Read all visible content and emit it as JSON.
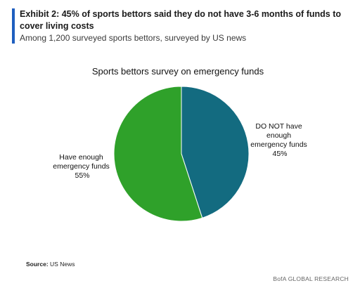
{
  "exhibit": {
    "title": "Exhibit 2: 45% of sports bettors said they do not have 3-6 months of funds to cover living costs",
    "subtitle": "Among 1,200 surveyed sports bettors, surveyed by US news"
  },
  "footer": {
    "source_label": "Source:",
    "source_value": "US News",
    "brand": "BofA GLOBAL RESEARCH"
  },
  "colors": {
    "accent_bar": "#1f5fbf",
    "slice_not_have": "#136b80",
    "slice_have": "#2fa12a"
  },
  "chart_data": {
    "type": "pie",
    "title": "Sports bettors survey on emergency funds",
    "slices": [
      {
        "label_lines": [
          "DO NOT have",
          "enough",
          "emergency funds"
        ],
        "value": 45,
        "value_label": "45%",
        "color": "#136b80"
      },
      {
        "label_lines": [
          "Have enough",
          "emergency funds"
        ],
        "value": 55,
        "value_label": "55%",
        "color": "#2fa12a"
      }
    ]
  }
}
